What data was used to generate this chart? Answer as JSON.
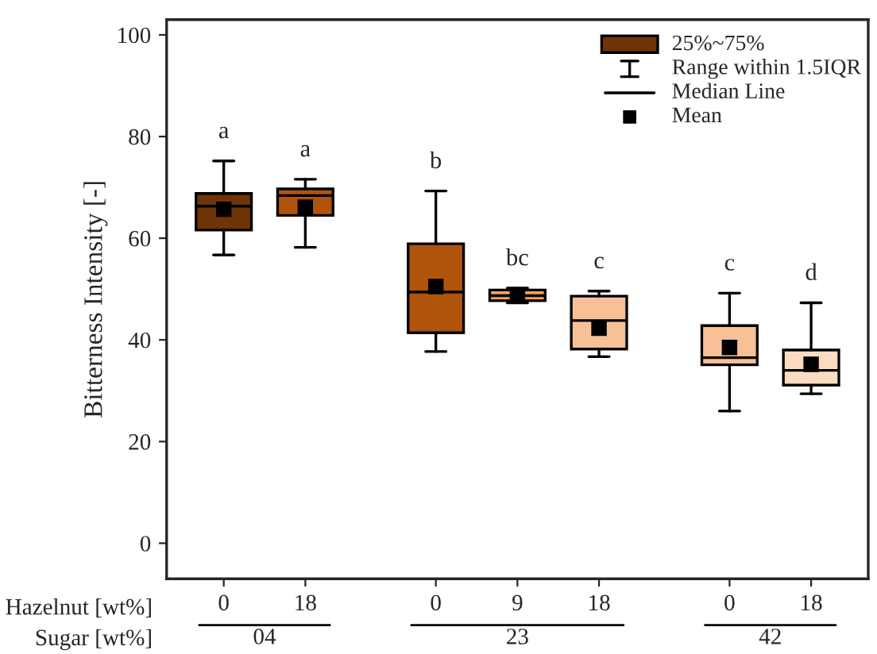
{
  "chart_data": {
    "type": "box",
    "ylabel": "Bitterness Intensity [-]",
    "xlabel": "Hazelnut [wt%]",
    "categories": [
      "0",
      "18",
      "0",
      "9",
      "18",
      "0",
      "18"
    ],
    "colors": [
      "#6f3407",
      "#b0540c",
      "#b0540c",
      "#f2a060",
      "#f8c096",
      "#f8c096",
      "#fbdcc0"
    ],
    "boxes": [
      {
        "low": 56.7,
        "q1": 61.6,
        "median": 66.3,
        "q3": 68.8,
        "high": 75.2,
        "mean": 65.7
      },
      {
        "low": 58.2,
        "q1": 64.5,
        "median": 68.4,
        "q3": 69.7,
        "high": 71.6,
        "mean": 66.1
      },
      {
        "low": 37.7,
        "q1": 41.4,
        "median": 49.4,
        "q3": 58.9,
        "high": 69.3,
        "mean": 50.5
      },
      {
        "low": 47.3,
        "q1": 47.7,
        "median": 48.7,
        "q3": 49.8,
        "high": 50.2,
        "mean": 48.6
      },
      {
        "low": 36.7,
        "q1": 38.2,
        "median": 43.8,
        "q3": 48.6,
        "high": 49.6,
        "mean": 42.3
      },
      {
        "low": 26.0,
        "q1": 35.1,
        "median": 36.5,
        "q3": 42.8,
        "high": 49.2,
        "mean": 38.5
      },
      {
        "low": 29.4,
        "q1": 31.1,
        "median": 34.0,
        "q3": 38.0,
        "high": 47.3,
        "mean": 35.2
      }
    ],
    "ylim": [
      -7,
      103
    ],
    "yticks": [
      0,
      20,
      40,
      60,
      80,
      100
    ],
    "annotations": [
      "a",
      "a",
      "b",
      "bc",
      "c",
      "c",
      "d",
      "25%~75%",
      "Range within 1.5IQR",
      "Median Line",
      "Mean",
      "Sugar [wt%]",
      "04",
      "23",
      "42"
    ]
  }
}
